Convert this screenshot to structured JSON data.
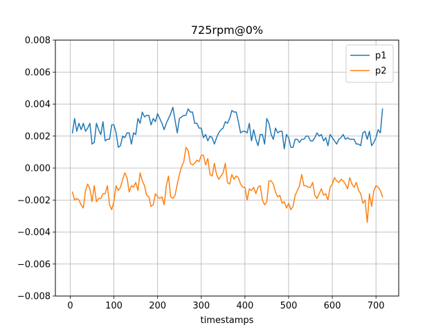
{
  "chart_data": {
    "type": "line",
    "title": "725rpm@0%",
    "xlabel": "timestamps",
    "ylabel": "",
    "xlim": [
      -34,
      752
    ],
    "ylim": [
      -0.008,
      0.008
    ],
    "xticks": [
      0,
      100,
      200,
      300,
      400,
      500,
      600,
      700
    ],
    "xtick_labels": [
      "0",
      "100",
      "200",
      "300",
      "400",
      "500",
      "600",
      "700"
    ],
    "yticks": [
      -0.008,
      -0.006,
      -0.004,
      -0.002,
      0.0,
      0.002,
      0.004,
      0.006,
      0.008
    ],
    "ytick_labels": [
      "−0.008",
      "−0.006",
      "−0.004",
      "−0.002",
      "0.000",
      "0.002",
      "0.004",
      "0.006",
      "0.008"
    ],
    "grid": true,
    "legend_position": "top-right",
    "colors": {
      "p1": "#1f77b4",
      "p2": "#ff7f0e"
    },
    "series": [
      {
        "name": "p1",
        "color": "#1f77b4",
        "points": [
          [
            5,
            0.0022
          ],
          [
            10,
            0.0031
          ],
          [
            15,
            0.0023
          ],
          [
            20,
            0.0028
          ],
          [
            25,
            0.0024
          ],
          [
            30,
            0.0028
          ],
          [
            35,
            0.0023
          ],
          [
            40,
            0.0025
          ],
          [
            45,
            0.0028
          ],
          [
            50,
            0.0015
          ],
          [
            55,
            0.0016
          ],
          [
            60,
            0.0028
          ],
          [
            65,
            0.0024
          ],
          [
            70,
            0.0021
          ],
          [
            75,
            0.0029
          ],
          [
            80,
            0.0017
          ],
          [
            85,
            0.0018
          ],
          [
            90,
            0.0018
          ],
          [
            95,
            0.0027
          ],
          [
            100,
            0.0027
          ],
          [
            105,
            0.0022
          ],
          [
            110,
            0.0013
          ],
          [
            115,
            0.0014
          ],
          [
            120,
            0.002
          ],
          [
            125,
            0.0019
          ],
          [
            130,
            0.0022
          ],
          [
            135,
            0.0022
          ],
          [
            140,
            0.0015
          ],
          [
            145,
            0.0022
          ],
          [
            150,
            0.0021
          ],
          [
            155,
            0.0031
          ],
          [
            160,
            0.0028
          ],
          [
            165,
            0.0035
          ],
          [
            170,
            0.0032
          ],
          [
            175,
            0.0033
          ],
          [
            180,
            0.0033
          ],
          [
            185,
            0.0027
          ],
          [
            190,
            0.0031
          ],
          [
            195,
            0.0029
          ],
          [
            200,
            0.0034
          ],
          [
            205,
            0.0031
          ],
          [
            210,
            0.0028
          ],
          [
            215,
            0.0024
          ],
          [
            220,
            0.0028
          ],
          [
            225,
            0.0031
          ],
          [
            230,
            0.0034
          ],
          [
            235,
            0.0038
          ],
          [
            240,
            0.003
          ],
          [
            245,
            0.0022
          ],
          [
            250,
            0.0031
          ],
          [
            255,
            0.0032
          ],
          [
            260,
            0.0033
          ],
          [
            265,
            0.0033
          ],
          [
            270,
            0.0037
          ],
          [
            275,
            0.0035
          ],
          [
            280,
            0.0035
          ],
          [
            285,
            0.0028
          ],
          [
            290,
            0.0028
          ],
          [
            295,
            0.0025
          ],
          [
            300,
            0.0025
          ],
          [
            305,
            0.0019
          ],
          [
            310,
            0.0021
          ],
          [
            315,
            0.0017
          ],
          [
            320,
            0.002
          ],
          [
            325,
            0.0019
          ],
          [
            330,
            0.0015
          ],
          [
            335,
            0.0019
          ],
          [
            340,
            0.0022
          ],
          [
            345,
            0.0024
          ],
          [
            350,
            0.0025
          ],
          [
            355,
            0.0029
          ],
          [
            360,
            0.0028
          ],
          [
            365,
            0.0031
          ],
          [
            370,
            0.0036
          ],
          [
            375,
            0.0035
          ],
          [
            380,
            0.0035
          ],
          [
            385,
            0.0029
          ],
          [
            390,
            0.0022
          ],
          [
            395,
            0.0023
          ],
          [
            400,
            0.0023
          ],
          [
            405,
            0.0022
          ],
          [
            410,
            0.0028
          ],
          [
            415,
            0.0017
          ],
          [
            420,
            0.0024
          ],
          [
            425,
            0.0018
          ],
          [
            430,
            0.0014
          ],
          [
            435,
            0.0021
          ],
          [
            440,
            0.0021
          ],
          [
            445,
            0.0015
          ],
          [
            450,
            0.0031
          ],
          [
            455,
            0.0028
          ],
          [
            460,
            0.0021
          ],
          [
            465,
            0.0018
          ],
          [
            470,
            0.0025
          ],
          [
            475,
            0.0022
          ],
          [
            480,
            0.0023
          ],
          [
            485,
            0.0023
          ],
          [
            490,
            0.0012
          ],
          [
            495,
            0.0021
          ],
          [
            500,
            0.0019
          ],
          [
            505,
            0.0013
          ],
          [
            510,
            0.0013
          ],
          [
            515,
            0.0018
          ],
          [
            520,
            0.0018
          ],
          [
            525,
            0.0016
          ],
          [
            530,
            0.0018
          ],
          [
            535,
            0.0018
          ],
          [
            540,
            0.002
          ],
          [
            545,
            0.002
          ],
          [
            550,
            0.0017
          ],
          [
            555,
            0.0017
          ],
          [
            560,
            0.0019
          ],
          [
            565,
            0.0022
          ],
          [
            570,
            0.002
          ],
          [
            575,
            0.0021
          ],
          [
            580,
            0.0017
          ],
          [
            585,
            0.0019
          ],
          [
            590,
            0.0014
          ],
          [
            595,
            0.0021
          ],
          [
            600,
            0.0019
          ],
          [
            605,
            0.0017
          ],
          [
            610,
            0.0015
          ],
          [
            615,
            0.0018
          ],
          [
            620,
            0.0019
          ],
          [
            625,
            0.0021
          ],
          [
            630,
            0.0018
          ],
          [
            635,
            0.0019
          ],
          [
            640,
            0.0018
          ],
          [
            645,
            0.0018
          ],
          [
            650,
            0.0018
          ],
          [
            655,
            0.0015
          ],
          [
            660,
            0.0015
          ],
          [
            665,
            0.0014
          ],
          [
            670,
            0.0022
          ],
          [
            675,
            0.0023
          ],
          [
            680,
            0.0018
          ],
          [
            685,
            0.0023
          ],
          [
            690,
            0.0014
          ],
          [
            695,
            0.0016
          ],
          [
            700,
            0.0019
          ],
          [
            705,
            0.0024
          ],
          [
            710,
            0.0022
          ],
          [
            715,
            0.0037
          ]
        ]
      },
      {
        "name": "p2",
        "color": "#ff7f0e",
        "points": [
          [
            5,
            -0.0015
          ],
          [
            10,
            -0.002
          ],
          [
            15,
            -0.0019
          ],
          [
            20,
            -0.002
          ],
          [
            25,
            -0.0023
          ],
          [
            30,
            -0.0025
          ],
          [
            35,
            -0.0014
          ],
          [
            40,
            -0.001
          ],
          [
            45,
            -0.0013
          ],
          [
            50,
            -0.0021
          ],
          [
            55,
            -0.0011
          ],
          [
            60,
            -0.0021
          ],
          [
            65,
            -0.0019
          ],
          [
            70,
            -0.0019
          ],
          [
            75,
            -0.0016
          ],
          [
            80,
            -0.0016
          ],
          [
            85,
            -0.0011
          ],
          [
            90,
            -0.0023
          ],
          [
            95,
            -0.0026
          ],
          [
            100,
            -0.0021
          ],
          [
            105,
            -0.0011
          ],
          [
            110,
            -0.0014
          ],
          [
            115,
            -0.0012
          ],
          [
            120,
            -0.0007
          ],
          [
            125,
            -0.0003
          ],
          [
            130,
            -0.0006
          ],
          [
            135,
            -0.0015
          ],
          [
            140,
            -0.0011
          ],
          [
            145,
            -0.0012
          ],
          [
            150,
            -0.0009
          ],
          [
            155,
            -0.0014
          ],
          [
            160,
            -0.0003
          ],
          [
            165,
            -0.0008
          ],
          [
            170,
            -0.0011
          ],
          [
            175,
            -0.0017
          ],
          [
            180,
            -0.0018
          ],
          [
            185,
            -0.0024
          ],
          [
            190,
            -0.0023
          ],
          [
            195,
            -0.0016
          ],
          [
            200,
            -0.0018
          ],
          [
            205,
            -0.0019
          ],
          [
            210,
            -0.0018
          ],
          [
            215,
            -0.0023
          ],
          [
            220,
            -0.0011
          ],
          [
            225,
            -0.0005
          ],
          [
            230,
            -0.0018
          ],
          [
            235,
            -0.0019
          ],
          [
            240,
            -0.0017
          ],
          [
            245,
            -0.001
          ],
          [
            250,
            -0.0004
          ],
          [
            255,
            0.0001
          ],
          [
            260,
            0.0004
          ],
          [
            265,
            0.0013
          ],
          [
            270,
            0.0011
          ],
          [
            275,
            0.0003
          ],
          [
            280,
            0.0002
          ],
          [
            285,
            0.0003
          ],
          [
            290,
            0.0005
          ],
          [
            295,
            0.0004
          ],
          [
            300,
            0.0008
          ],
          [
            305,
            0.0008
          ],
          [
            310,
            0.0002
          ],
          [
            315,
            0.0006
          ],
          [
            320,
            -0.0004
          ],
          [
            325,
            -0.0005
          ],
          [
            330,
            0.0003
          ],
          [
            335,
            -0.0004
          ],
          [
            340,
            -0.0007
          ],
          [
            345,
            -0.0005
          ],
          [
            350,
            -0.0003
          ],
          [
            355,
            0.0003
          ],
          [
            360,
            -0.0009
          ],
          [
            365,
            -0.001
          ],
          [
            370,
            -0.0004
          ],
          [
            375,
            -0.0007
          ],
          [
            380,
            -0.0005
          ],
          [
            385,
            -0.0006
          ],
          [
            390,
            -0.001
          ],
          [
            395,
            -0.0012
          ],
          [
            400,
            -0.0012
          ],
          [
            405,
            -0.002
          ],
          [
            410,
            -0.0013
          ],
          [
            415,
            -0.0014
          ],
          [
            420,
            -0.0012
          ],
          [
            425,
            -0.0016
          ],
          [
            430,
            -0.0012
          ],
          [
            435,
            -0.0011
          ],
          [
            440,
            -0.002
          ],
          [
            445,
            -0.0023
          ],
          [
            450,
            -0.0021
          ],
          [
            455,
            -0.0008
          ],
          [
            460,
            -0.0008
          ],
          [
            465,
            -0.001
          ],
          [
            470,
            -0.0015
          ],
          [
            475,
            -0.0018
          ],
          [
            480,
            -0.0017
          ],
          [
            485,
            -0.0022
          ],
          [
            490,
            -0.0021
          ],
          [
            495,
            -0.0025
          ],
          [
            500,
            -0.0022
          ],
          [
            505,
            -0.0026
          ],
          [
            510,
            -0.0024
          ],
          [
            515,
            -0.0017
          ],
          [
            520,
            -0.0014
          ],
          [
            525,
            -0.0011
          ],
          [
            530,
            -0.0004
          ],
          [
            535,
            -0.0011
          ],
          [
            540,
            -0.0011
          ],
          [
            545,
            -0.0012
          ],
          [
            550,
            -0.0012
          ],
          [
            555,
            -0.0009
          ],
          [
            560,
            -0.0017
          ],
          [
            565,
            -0.0019
          ],
          [
            570,
            -0.0016
          ],
          [
            575,
            -0.0013
          ],
          [
            580,
            -0.0017
          ],
          [
            585,
            -0.0016
          ],
          [
            590,
            -0.002
          ],
          [
            595,
            -0.0012
          ],
          [
            600,
            -0.001
          ],
          [
            605,
            -0.0006
          ],
          [
            610,
            -0.0008
          ],
          [
            615,
            -0.0009
          ],
          [
            620,
            -0.0007
          ],
          [
            625,
            -0.0008
          ],
          [
            630,
            -0.001
          ],
          [
            635,
            -0.0013
          ],
          [
            640,
            -0.0006
          ],
          [
            645,
            -0.001
          ],
          [
            650,
            -0.0012
          ],
          [
            655,
            -0.0009
          ],
          [
            660,
            -0.0014
          ],
          [
            665,
            -0.0016
          ],
          [
            670,
            -0.0022
          ],
          [
            675,
            -0.002
          ],
          [
            680,
            -0.0034
          ],
          [
            685,
            -0.0016
          ],
          [
            690,
            -0.0024
          ],
          [
            695,
            -0.0014
          ],
          [
            700,
            -0.0011
          ],
          [
            705,
            -0.0012
          ],
          [
            710,
            -0.0014
          ],
          [
            715,
            -0.0018
          ]
        ]
      }
    ]
  }
}
